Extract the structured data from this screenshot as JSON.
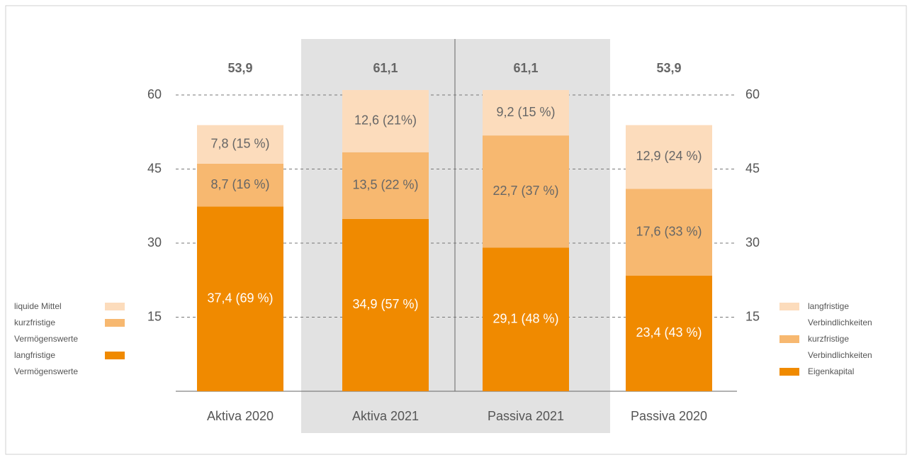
{
  "chart_data": {
    "type": "stacked_bar",
    "categories": [
      "Aktiva 2020",
      "Aktiva 2021",
      "Passiva 2021",
      "Passiva 2020"
    ],
    "series": [
      {
        "name": "langfristige Vermögenswerte",
        "color": "#f08a00",
        "legend": "left",
        "values": [
          37.4,
          34.9,
          null,
          null
        ],
        "value_labels": [
          "37,4 (69 %)",
          "34,9 (57 %)",
          null,
          null
        ]
      },
      {
        "name": "kurzfristige Vermögenswerte",
        "color": "#f7b870",
        "legend": "left",
        "values": [
          8.7,
          13.5,
          null,
          null
        ],
        "value_labels": [
          "8,7 (16 %)",
          "13,5 (22 %)",
          null,
          null
        ]
      },
      {
        "name": "liquide Mittel",
        "color": "#fcdcbc",
        "legend": "left",
        "values": [
          7.8,
          12.6,
          null,
          null
        ],
        "value_labels": [
          "7,8 (15 %)",
          "12,6 (21%)",
          null,
          null
        ]
      },
      {
        "name": "Eigenkapital",
        "color": "#f08a00",
        "legend": "right",
        "values": [
          null,
          null,
          29.1,
          23.4
        ],
        "value_labels": [
          null,
          null,
          "29,1 (48 %)",
          "23,4 (43 %)"
        ]
      },
      {
        "name": "kurzfristige Verbindlichkeiten",
        "color": "#f7b870",
        "legend": "right",
        "values": [
          null,
          null,
          22.7,
          17.6
        ],
        "value_labels": [
          null,
          null,
          "22,7 (37 %)",
          "17,6 (33 %)"
        ]
      },
      {
        "name": "langfristige Verbindlichkeiten",
        "color": "#fcdcbc",
        "legend": "right",
        "values": [
          null,
          null,
          9.2,
          12.9
        ],
        "value_labels": [
          null,
          null,
          "9,2 (15 %)",
          "12,9 (24 %)"
        ]
      }
    ],
    "totals": {
      "values": [
        53.9,
        61.1,
        61.1,
        53.9
      ],
      "value_labels": [
        "53,9",
        "61,1",
        "61,1",
        "53,9"
      ]
    },
    "ylim": [
      0,
      60
    ],
    "yticks": [
      15,
      30,
      45,
      60
    ],
    "grid": true
  }
}
